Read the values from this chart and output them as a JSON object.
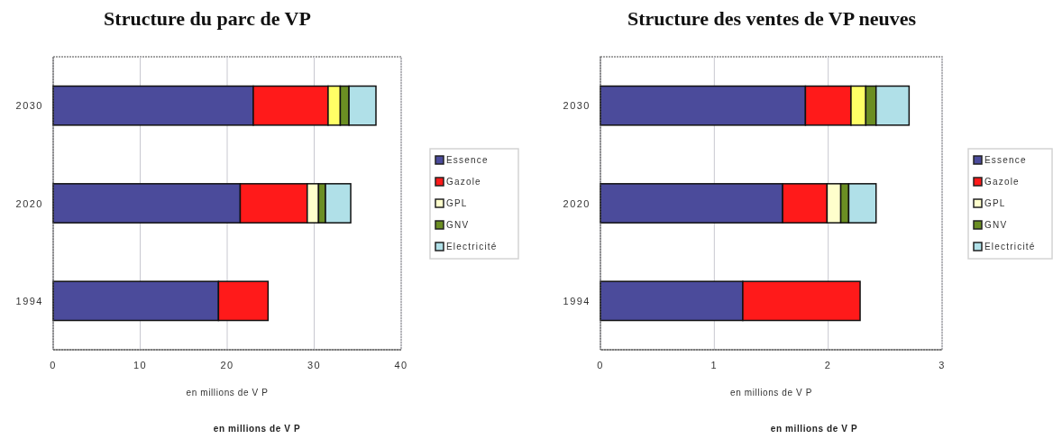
{
  "chart_data": [
    {
      "type": "bar",
      "title": "Structure du parc de VP",
      "orientation": "horizontal",
      "stacked": true,
      "categories": [
        "2030",
        "2020",
        "1994"
      ],
      "series": [
        {
          "name": "Essence",
          "color": "#4b4b9b",
          "values": [
            23,
            21.5,
            19
          ]
        },
        {
          "name": "Gazole",
          "color": "#ff1a1a",
          "values": [
            8.6,
            7.7,
            5.7
          ]
        },
        {
          "name": "GPL",
          "color": "#ffffcc",
          "colors": [
            "#ffff66",
            "#ffffcc",
            null
          ],
          "values": [
            1.4,
            1.3,
            null
          ]
        },
        {
          "name": "GNV",
          "color": "#6b8e23",
          "values": [
            1.0,
            0.8,
            null
          ]
        },
        {
          "name": "Electricité",
          "color": "#b0e0e8",
          "values": [
            3.1,
            2.9,
            null
          ]
        }
      ],
      "xlim": [
        0,
        40
      ],
      "xticks": [
        0,
        10,
        20,
        30,
        40
      ],
      "xlabel": "en millions de V P",
      "annotations": [
        "en millions de V P"
      ],
      "grid": "x",
      "legend": "right"
    },
    {
      "type": "bar",
      "title": "Structure des ventes de VP neuves",
      "orientation": "horizontal",
      "stacked": true,
      "categories": [
        "2030",
        "2020",
        "1994"
      ],
      "series": [
        {
          "name": "Essence",
          "color": "#4b4b9b",
          "values": [
            1.8,
            1.6,
            1.25
          ]
        },
        {
          "name": "Gazole",
          "color": "#ff1a1a",
          "values": [
            0.4,
            0.39,
            1.03
          ]
        },
        {
          "name": "GPL",
          "color": "#ffffcc",
          "colors": [
            "#ffff66",
            "#ffffcc",
            null
          ],
          "values": [
            0.13,
            0.12,
            null
          ]
        },
        {
          "name": "GNV",
          "color": "#6b8e23",
          "values": [
            0.09,
            0.07,
            null
          ]
        },
        {
          "name": "Electricité",
          "color": "#b0e0e8",
          "values": [
            0.29,
            0.24,
            null
          ]
        }
      ],
      "xlim": [
        0,
        3
      ],
      "xticks": [
        0,
        1,
        2,
        3
      ],
      "xlabel": "en millions de V P",
      "annotations": [
        "en millions de V P"
      ],
      "grid": "x",
      "legend": "right"
    }
  ]
}
